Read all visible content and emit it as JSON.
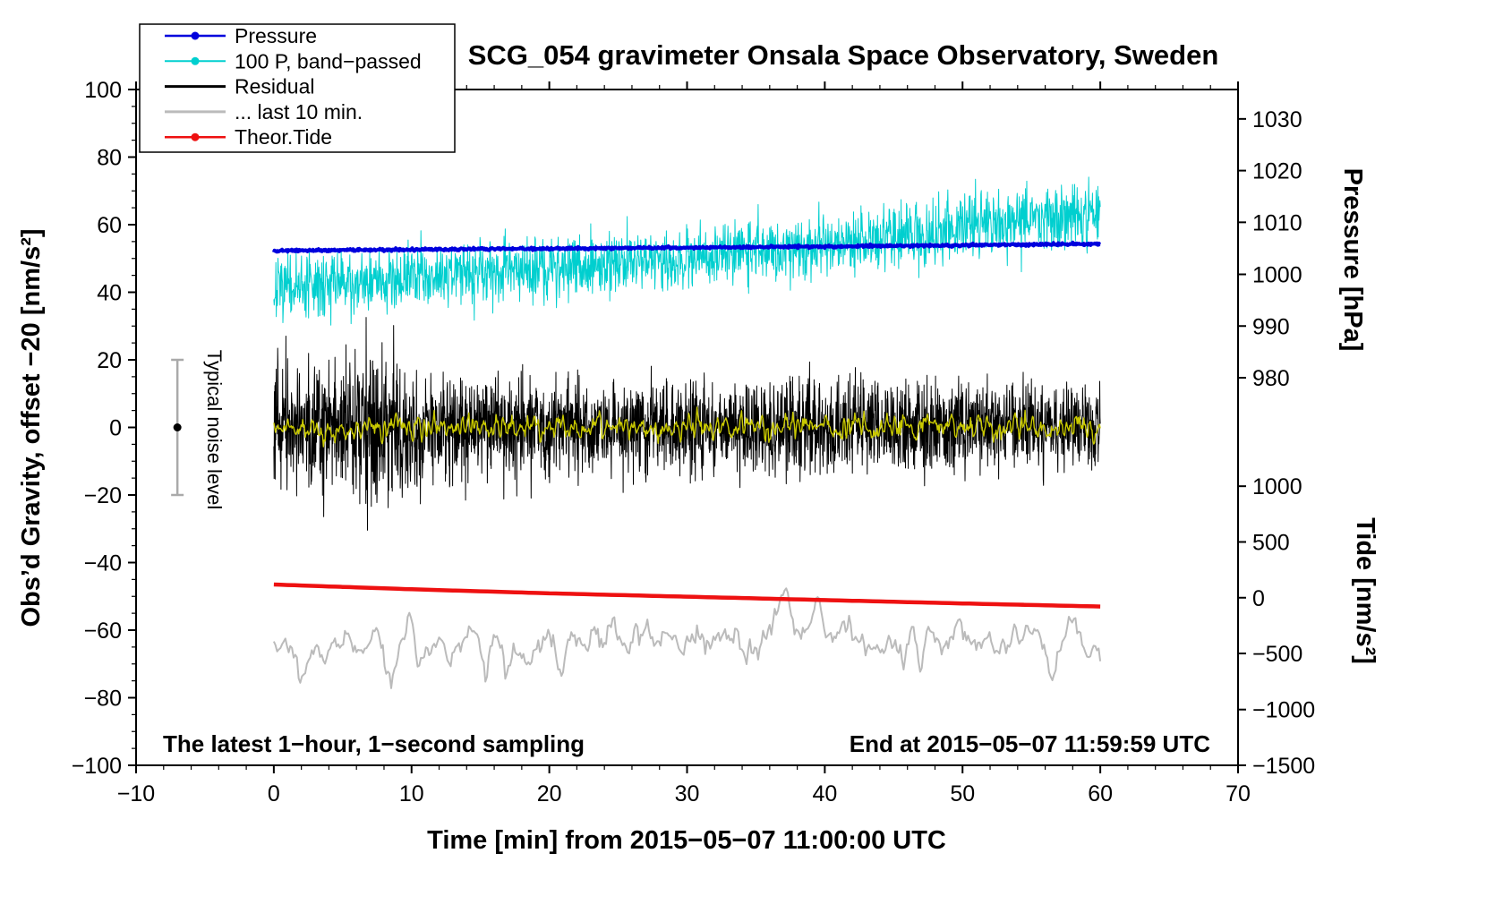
{
  "annotations": {
    "sampling_note": "The latest 1−hour, 1−second sampling",
    "end_time_note": "End at 2015−05−07 11:59:59 UTC"
  },
  "chart_data": {
    "type": "line",
    "title": "SCG_054 gravimeter Onsala Space Observatory, Sweden",
    "xlabel": "Time [min] from 2015−05−07 11:00:00 UTC",
    "ylabel_left": "Obs’d Gravity, offset −20 [nm/s²]",
    "ylabel_right_top": "Pressure [hPa]",
    "ylabel_right_bottom": "Tide [nm/s²]",
    "axes": {
      "x": {
        "min": -10,
        "max": 70,
        "minor_step": 2,
        "major_ticks": [
          {
            "v": -10,
            "label": "−10"
          },
          {
            "v": 0,
            "label": "0"
          },
          {
            "v": 10,
            "label": "10"
          },
          {
            "v": 20,
            "label": "20"
          },
          {
            "v": 30,
            "label": "30"
          },
          {
            "v": 40,
            "label": "40"
          },
          {
            "v": 50,
            "label": "50"
          },
          {
            "v": 60,
            "label": "60"
          },
          {
            "v": 70,
            "label": "70"
          }
        ]
      },
      "y_left": {
        "min": -100,
        "max": 100,
        "minor_step": 5,
        "major_ticks": [
          {
            "v": -100,
            "label": "−100"
          },
          {
            "v": -80,
            "label": "−80"
          },
          {
            "v": -60,
            "label": "−60"
          },
          {
            "v": -40,
            "label": "−40"
          },
          {
            "v": -20,
            "label": "−20"
          },
          {
            "v": 0,
            "label": "0"
          },
          {
            "v": 20,
            "label": "20"
          },
          {
            "v": 40,
            "label": "40"
          },
          {
            "v": 60,
            "label": "60"
          },
          {
            "v": 80,
            "label": "80"
          },
          {
            "v": 100,
            "label": "100"
          }
        ]
      },
      "y_right_pressure": {
        "unit": "hPa",
        "ticks": [
          {
            "label": "1030",
            "g": 91.3
          },
          {
            "label": "1020",
            "g": 76.0
          },
          {
            "label": "1010",
            "g": 60.7
          },
          {
            "label": "1000",
            "g": 45.3
          },
          {
            "label": "990",
            "g": 30.0
          },
          {
            "label": "980",
            "g": 14.7
          }
        ]
      },
      "y_right_tide": {
        "unit": "nm/s²",
        "ticks": [
          {
            "label": "1000",
            "g": -17.4
          },
          {
            "label": "500",
            "g": -33.9
          },
          {
            "label": "0",
            "g": -50.4
          },
          {
            "label": "−500",
            "g": -66.9
          },
          {
            "label": "−1000",
            "g": -83.5
          },
          {
            "label": "−1500",
            "g": -100
          }
        ]
      }
    },
    "noise_marker": {
      "x": -7,
      "y_low": -20,
      "y_high": 20,
      "dot_y": 0,
      "label": "Typical noise level"
    },
    "series": [
      {
        "name": "band_passed",
        "color": "#00cfcf",
        "width": 1,
        "dt": 0.03,
        "seed": 7,
        "trend": [
          [
            0,
            40
          ],
          [
            5,
            43
          ],
          [
            10,
            45
          ],
          [
            20,
            47.5
          ],
          [
            30,
            50
          ],
          [
            40,
            54
          ],
          [
            47,
            57
          ],
          [
            53,
            61
          ],
          [
            57,
            63
          ],
          [
            60,
            63
          ]
        ],
        "sigma": [
          [
            0,
            4.5
          ],
          [
            20,
            4.5
          ],
          [
            40,
            4.8
          ],
          [
            50,
            5.2
          ],
          [
            60,
            4.5
          ]
        ],
        "smooth": 0,
        "impulses": []
      },
      {
        "name": "residual",
        "color": "#000000",
        "width": 1,
        "dt": 0.02,
        "seed": 3,
        "trend": [
          [
            0,
            0
          ],
          [
            60,
            0
          ]
        ],
        "sigma": [
          [
            0,
            8.5
          ],
          [
            8,
            10.5
          ],
          [
            11,
            8.5
          ],
          [
            15,
            7
          ],
          [
            30,
            6.8
          ],
          [
            60,
            6.2
          ]
        ],
        "smooth": 0,
        "impulses": [
          {
            "x": 9.3,
            "dy": -12,
            "w": 0.08
          },
          {
            "x": 1.2,
            "dy": 10,
            "w": 0.08
          }
        ]
      },
      {
        "name": "residual_filtered",
        "color": "#c9c900",
        "width": 1.4,
        "dt": 0.06,
        "seed": 11,
        "trend": [
          [
            0,
            0
          ],
          [
            60,
            0
          ]
        ],
        "sigma": 3.2,
        "smooth": 1,
        "impulses": []
      },
      {
        "name": "last_10_min",
        "color": "#bbbbbb",
        "width": 2,
        "dt": 0.12,
        "seed": 5,
        "trend": [
          [
            0,
            -65
          ],
          [
            5,
            -63
          ],
          [
            20,
            -64
          ],
          [
            37,
            -61
          ],
          [
            45,
            -63
          ],
          [
            60,
            -62
          ]
        ],
        "sigma": 8,
        "smooth": 2,
        "impulses": [
          {
            "x": 37.3,
            "dy": 20,
            "w": 0.5
          },
          {
            "x": 8.6,
            "dy": -11,
            "w": 0.5
          },
          {
            "x": 21,
            "dy": -11,
            "w": 0.45
          },
          {
            "x": 47,
            "dy": -9,
            "w": 0.4
          },
          {
            "x": 56.5,
            "dy": -11,
            "w": 0.45
          },
          {
            "x": 2,
            "dy": -8,
            "w": 0.5
          }
        ]
      },
      {
        "name": "pressure",
        "color": "#0000dd",
        "width": 4,
        "dt": 0.05,
        "seed": 13,
        "trend": [
          [
            0,
            52.3
          ],
          [
            15,
            52.8
          ],
          [
            30,
            53.2
          ],
          [
            45,
            53.7
          ],
          [
            60,
            54.3
          ]
        ],
        "sigma": 0.18,
        "smooth": 0,
        "impulses": []
      },
      {
        "name": "theor_tide",
        "color": "#ee1111",
        "width": 4.5,
        "dt": 0.5,
        "seed": 1,
        "trend": [
          [
            0,
            -46.5
          ],
          [
            10,
            -47.9
          ],
          [
            20,
            -49.1
          ],
          [
            30,
            -50.1
          ],
          [
            40,
            -51.1
          ],
          [
            50,
            -52.1
          ],
          [
            60,
            -53
          ]
        ],
        "sigma": 0,
        "smooth": 0,
        "impulses": []
      }
    ],
    "legend": {
      "items": [
        {
          "label": "Pressure",
          "color": "#0000dd",
          "dot": true,
          "lw": 2.5
        },
        {
          "label": "100 P, band−passed",
          "color": "#00cfcf",
          "dot": true,
          "lw": 2
        },
        {
          "label": "Residual",
          "color": "#000000",
          "dot": false,
          "lw": 3
        },
        {
          "label": "... last 10 min.",
          "color": "#bbbbbb",
          "dot": false,
          "lw": 3
        },
        {
          "label": "Theor.Tide",
          "color": "#ee1111",
          "dot": true,
          "lw": 2.5
        }
      ]
    }
  }
}
